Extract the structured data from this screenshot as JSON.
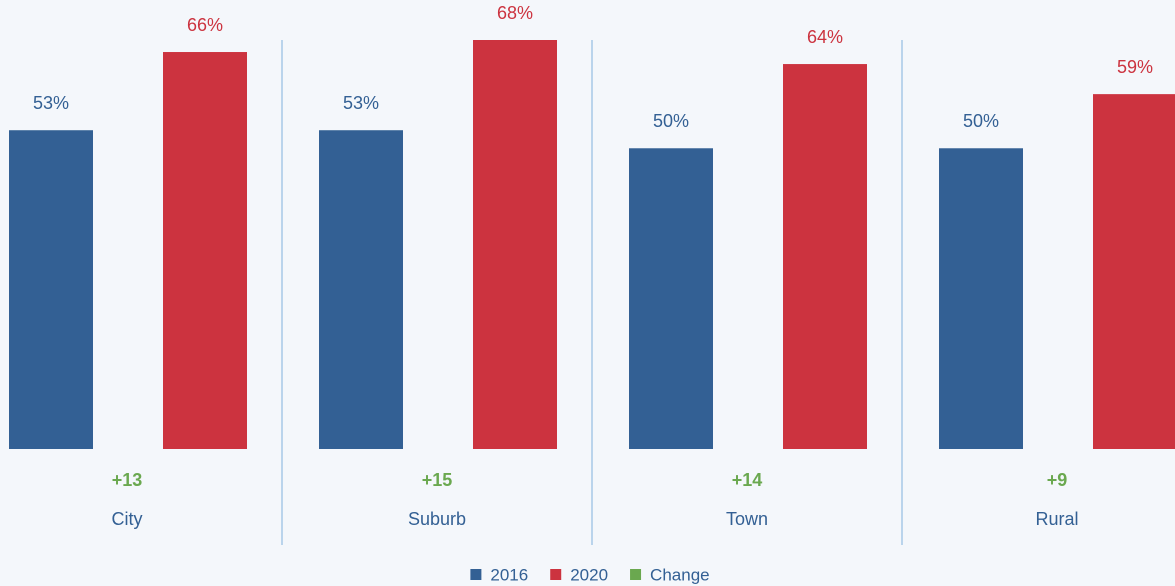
{
  "chart_data": {
    "type": "bar",
    "categories": [
      "City",
      "Suburb",
      "Town",
      "Rural"
    ],
    "series": [
      {
        "name": "2016",
        "color": "#336094",
        "values": [
          53,
          53,
          50,
          50
        ],
        "value_labels": [
          "53%",
          "53%",
          "50%",
          "50%"
        ]
      },
      {
        "name": "2020",
        "color": "#cc333f",
        "values": [
          66,
          68,
          64,
          59
        ],
        "value_labels": [
          "66%",
          "68%",
          "64%",
          "59%"
        ]
      },
      {
        "name": "Change",
        "color": "#6aa84f",
        "values": [
          13,
          15,
          14,
          9
        ],
        "value_labels": [
          "+13",
          "+15",
          "+14",
          "+9"
        ]
      }
    ],
    "legend": "bottom"
  }
}
